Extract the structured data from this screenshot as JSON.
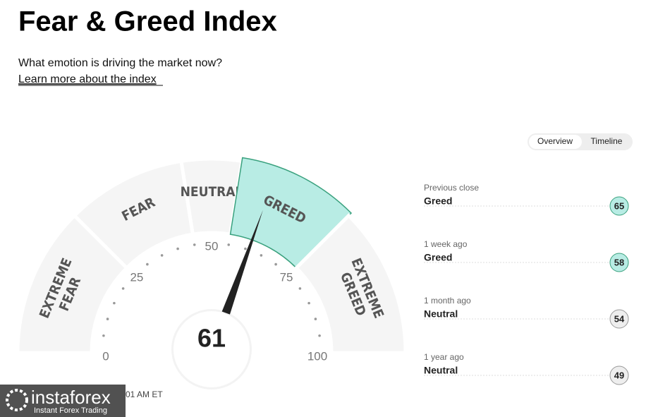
{
  "header": {
    "title": "Fear & Greed Index",
    "subtitle": "What emotion is driving the market now?",
    "link": "Learn more about the index"
  },
  "tabs": [
    "Overview",
    "Timeline"
  ],
  "gauge": {
    "value": 61,
    "range": [
      0,
      100
    ],
    "ticks": [
      0,
      25,
      50,
      75,
      100
    ],
    "zones": [
      {
        "lines": [
          "EXTREME",
          "FEAR"
        ],
        "from": 0,
        "to": 25
      },
      {
        "lines": [
          "FEAR"
        ],
        "from": 25,
        "to": 45
      },
      {
        "lines": [
          "NEUTRAL"
        ],
        "from": 45,
        "to": 55
      },
      {
        "lines": [
          "GREED"
        ],
        "from": 55,
        "to": 75,
        "active": true
      },
      {
        "lines": [
          "EXTREME",
          "GREED"
        ],
        "from": 75,
        "to": 100
      }
    ],
    "updated": "01 AM ET"
  },
  "history": [
    {
      "label": "Previous close",
      "rating": "Greed",
      "value": 65,
      "color": "#b8ece4",
      "border": "#3aa17e"
    },
    {
      "label": "1 week ago",
      "rating": "Greed",
      "value": 58,
      "color": "#b8ece4",
      "border": "#3aa17e"
    },
    {
      "label": "1 month ago",
      "rating": "Neutral",
      "value": 54,
      "color": "#eeeeee",
      "border": "#999999"
    },
    {
      "label": "1 year ago",
      "rating": "Neutral",
      "value": 49,
      "color": "#eeeeee",
      "border": "#999999"
    }
  ],
  "watermark": {
    "brand": "instaforex",
    "tagline": "Instant Forex Trading"
  }
}
